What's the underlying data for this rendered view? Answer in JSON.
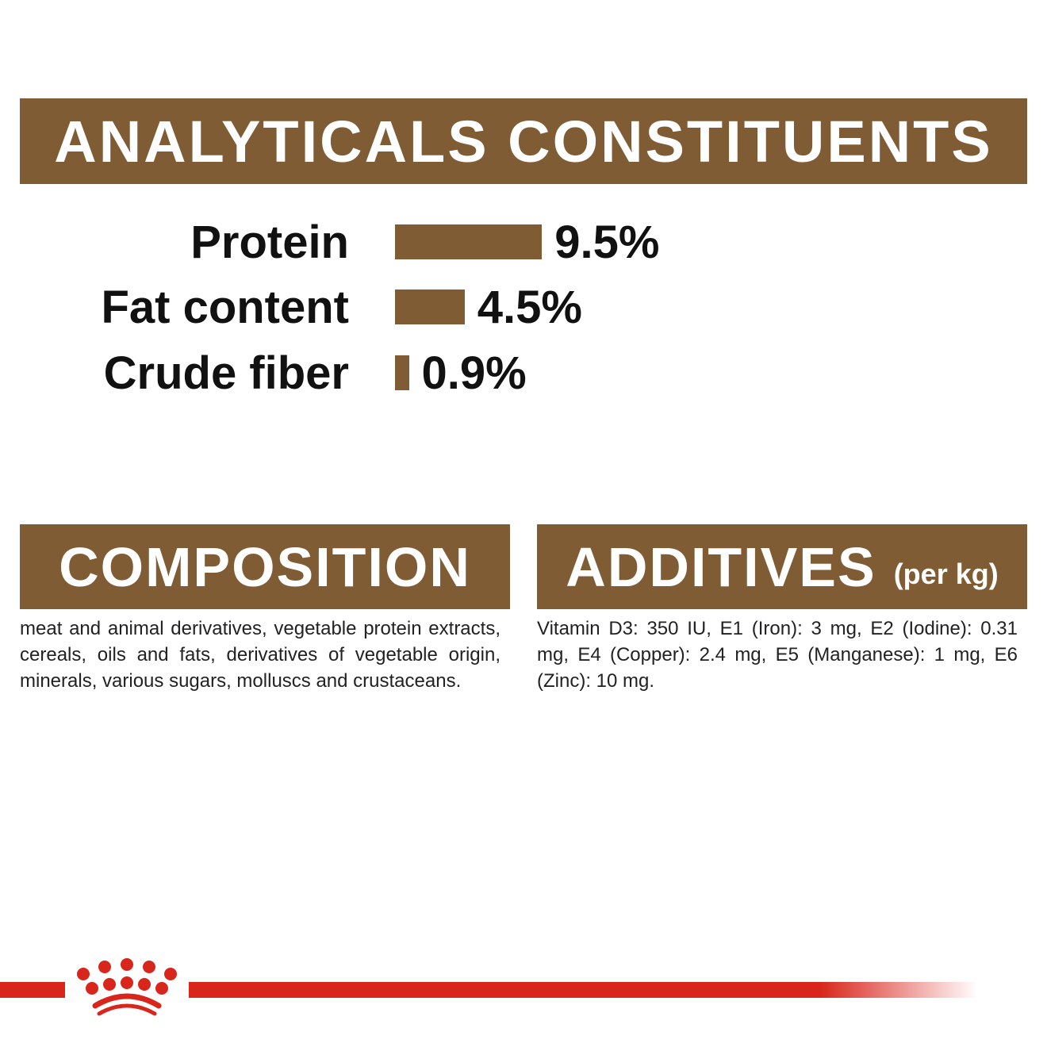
{
  "header": {
    "title": "ANALYTICALS CONSTITUENTS"
  },
  "constituents": [
    {
      "label": "Protein",
      "value": "9.5%",
      "percent": 9.5
    },
    {
      "label": "Fat content",
      "value": "4.5%",
      "percent": 4.5
    },
    {
      "label": "Crude fiber",
      "value": "0.9%",
      "percent": 0.9
    }
  ],
  "composition": {
    "title": "COMPOSITION",
    "text": "meat and animal derivatives, vegetable protein extracts, cereals, oils and fats, derivatives of vegetable origin, minerals, various sugars, molluscs and crustaceans."
  },
  "additives": {
    "title": "ADDITIVES",
    "subtitle": "(per kg)",
    "text": "Vitamin D3: 350 IU, E1 (Iron): 3 mg, E2 (Iodine): 0.31 mg, E4 (Copper): 2.4 mg, E5 (Manganese): 1 mg, E6 (Zinc): 10 mg."
  },
  "colors": {
    "brand_brown": "#7f5c34",
    "brand_red": "#d9261c"
  },
  "footer": {
    "logo": "royal-crown-logo"
  }
}
